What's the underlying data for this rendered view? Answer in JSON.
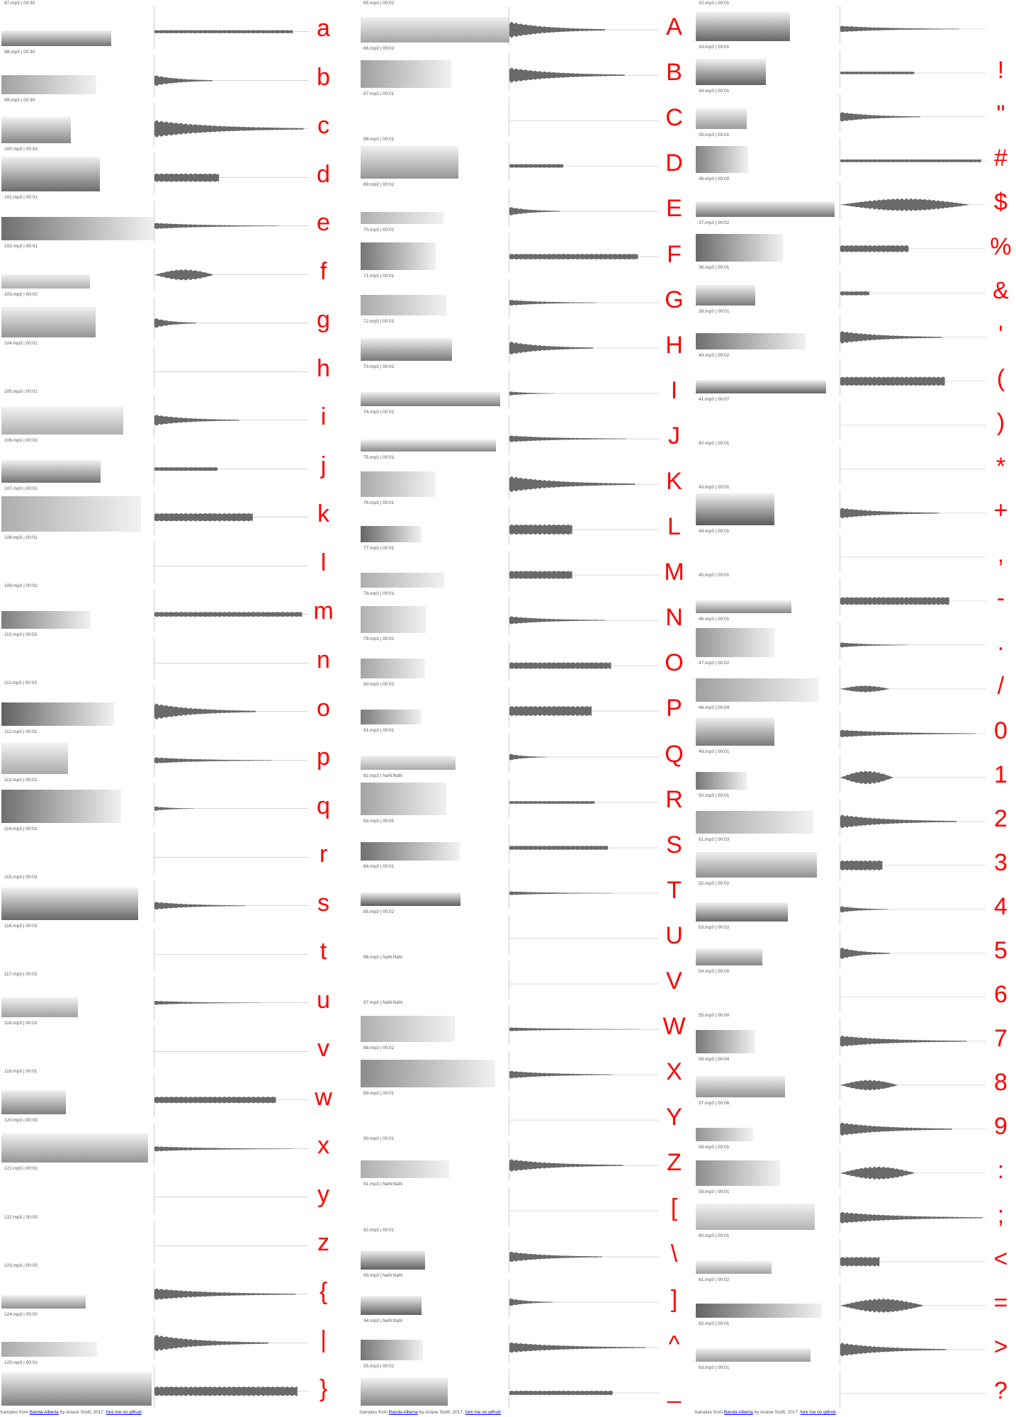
{
  "columns": [
    {
      "rows": [
        {
          "label": "97.mp3 | 00:30",
          "char": "a"
        },
        {
          "label": "98.mp3 | 00:30",
          "char": "b"
        },
        {
          "label": "99.mp3 | 00:30",
          "char": "c"
        },
        {
          "label": "100.mp3 | 00:03",
          "char": "d"
        },
        {
          "label": "101.mp3 | 00:01",
          "char": "e"
        },
        {
          "label": "102.mp3 | 00:01",
          "char": "f"
        },
        {
          "label": "103.mp3 | 00:02",
          "char": "g"
        },
        {
          "label": "104.mp3 | 00:01",
          "char": "h"
        },
        {
          "label": "105.mp3 | 00:01",
          "char": "i"
        },
        {
          "label": "106.mp3 | 00:03",
          "char": "j"
        },
        {
          "label": "107.mp3 | 00:01",
          "char": "k"
        },
        {
          "label": "108.mp3 | 00:01",
          "char": "l"
        },
        {
          "label": "109.mp3 | 00:02",
          "char": "m"
        },
        {
          "label": "110.mp3 | 00:02",
          "char": "n"
        },
        {
          "label": "111.mp3 | 00:03",
          "char": "o"
        },
        {
          "label": "112.mp3 | 00:01",
          "char": "p"
        },
        {
          "label": "113.mp3 | 00:02",
          "char": "q"
        },
        {
          "label": "114.mp3 | 00:02",
          "char": "r"
        },
        {
          "label": "115.mp3 | 00:03",
          "char": "s"
        },
        {
          "label": "116.mp3 | 00:03",
          "char": "t"
        },
        {
          "label": "117.mp3 | 00:02",
          "char": "u"
        },
        {
          "label": "118.mp3 | 00:02",
          "char": "v"
        },
        {
          "label": "119.mp3 | 00:01",
          "char": "w"
        },
        {
          "label": "120.mp3 | 00:03",
          "char": "x"
        },
        {
          "label": "121.mp3 | 00:01",
          "char": "y"
        },
        {
          "label": "122.mp3 | 00:03",
          "char": "z"
        },
        {
          "label": "123.mp3 | 00:03",
          "char": "{"
        },
        {
          "label": "124.mp3 | 00:02",
          "char": "|"
        },
        {
          "label": "125.mp3 | 00:01",
          "char": "}"
        }
      ]
    },
    {
      "rows": [
        {
          "label": "65.mp3 | 00:02",
          "char": "A"
        },
        {
          "label": "66.mp3 | 00:02",
          "char": "B"
        },
        {
          "label": "67.mp3 | 00:01",
          "char": "C"
        },
        {
          "label": "68.mp3 | 00:01",
          "char": "D"
        },
        {
          "label": "69.mp3 | 00:02",
          "char": "E"
        },
        {
          "label": "70.mp3 | 00:02",
          "char": "F"
        },
        {
          "label": "71.mp3 | 00:01",
          "char": "G"
        },
        {
          "label": "72.mp3 | 00:01",
          "char": "H"
        },
        {
          "label": "73.mp3 | 00:02",
          "char": "I"
        },
        {
          "label": "74.mp3 | 00:02",
          "char": "J"
        },
        {
          "label": "75.mp3 | 00:01",
          "char": "K"
        },
        {
          "label": "76.mp3 | 00:01",
          "char": "L"
        },
        {
          "label": "77.mp3 | 00:01",
          "char": "M"
        },
        {
          "label": "78.mp3 | 00:01",
          "char": "N"
        },
        {
          "label": "79.mp3 | 00:02",
          "char": "O"
        },
        {
          "label": "80.mp3 | 00:02",
          "char": "P"
        },
        {
          "label": "81.mp3 | 00:01",
          "char": "Q"
        },
        {
          "label": "82.mp3 | NaN:NaN",
          "char": "R"
        },
        {
          "label": "83.mp3 | 00:05",
          "char": "S"
        },
        {
          "label": "84.mp3 | 00:01",
          "char": "T"
        },
        {
          "label": "85.mp3 | 00:02",
          "char": "U"
        },
        {
          "label": "86.mp3 | NaN:NaN",
          "char": "V"
        },
        {
          "label": "87.mp3 | NaN:NaN",
          "char": "W"
        },
        {
          "label": "88.mp3 | 00:02",
          "char": "X"
        },
        {
          "label": "89.mp3 | 00:01",
          "char": "Y"
        },
        {
          "label": "90.mp3 | 00:01",
          "char": "Z"
        },
        {
          "label": "91.mp3 | NaN:NaN",
          "char": "["
        },
        {
          "label": "92.mp3 | 00:01",
          "char": "\\"
        },
        {
          "label": "93.mp3 | NaN:NaN",
          "char": "]"
        },
        {
          "label": "94.mp3 | NaN:NaN",
          "char": "^"
        },
        {
          "label": "95.mp3 | 00:02",
          "char": "_"
        }
      ]
    },
    {
      "rows": [
        {
          "label": "32.mp3 | 00:01"
        },
        {
          "label": "33.mp3 | 00:01",
          "char": "!"
        },
        {
          "label": "34.mp3 | 00:01",
          "char": "\""
        },
        {
          "label": "35.mp3 | 00:01",
          "char": "#"
        },
        {
          "label": "36.mp3 | 00:00",
          "char": "$"
        },
        {
          "label": "37.mp3 | 00:02",
          "char": "%"
        },
        {
          "label": "38.mp3 | 00:01",
          "char": "&"
        },
        {
          "label": "39.mp3 | 00:01",
          "char": "'"
        },
        {
          "label": "40.mp3 | 00:02",
          "char": "("
        },
        {
          "label": "41.mp3 | 00:07",
          "char": ")"
        },
        {
          "label": "42.mp3 | 00:01",
          "char": "*"
        },
        {
          "label": "43.mp3 | 00:01",
          "char": "+"
        },
        {
          "label": "44.mp3 | 00:01",
          "char": ","
        },
        {
          "label": "45.mp3 | 00:01",
          "char": "-"
        },
        {
          "label": "46.mp3 | 00:01",
          "char": "."
        },
        {
          "label": "47.mp3 | 00:02",
          "char": "/"
        },
        {
          "label": "48.mp3 | 00:04",
          "char": "0"
        },
        {
          "label": "49.mp3 | 00:01",
          "char": "1"
        },
        {
          "label": "50.mp3 | 00:01",
          "char": "2"
        },
        {
          "label": "51.mp3 | 00:03",
          "char": "3"
        },
        {
          "label": "52.mp3 | 00:02",
          "char": "4"
        },
        {
          "label": "53.mp3 | 00:02",
          "char": "5"
        },
        {
          "label": "54.mp3 | 00:00",
          "char": "6"
        },
        {
          "label": "55.mp3 | 00:00",
          "char": "7"
        },
        {
          "label": "56.mp3 | 00:04",
          "char": "8"
        },
        {
          "label": "57.mp3 | 00:06",
          "char": "9"
        },
        {
          "label": "58.mp3 | 00:01",
          "char": ":"
        },
        {
          "label": "59.mp3 | 00:01",
          "char": ";"
        },
        {
          "label": "60.mp3 | 00:01",
          "char": "<"
        },
        {
          "label": "61.mp3 | 00:02",
          "char": "="
        },
        {
          "label": "62.mp3 | 00:01",
          "char": ">"
        },
        {
          "label": "63.mp3 | 00:01",
          "char": "?"
        }
      ]
    }
  ],
  "footer": {
    "prefix": "Samples from",
    "link": "Banda Alberta",
    "by": "by Ariane Stolfi, 2017.",
    "github": "fork me on github"
  }
}
